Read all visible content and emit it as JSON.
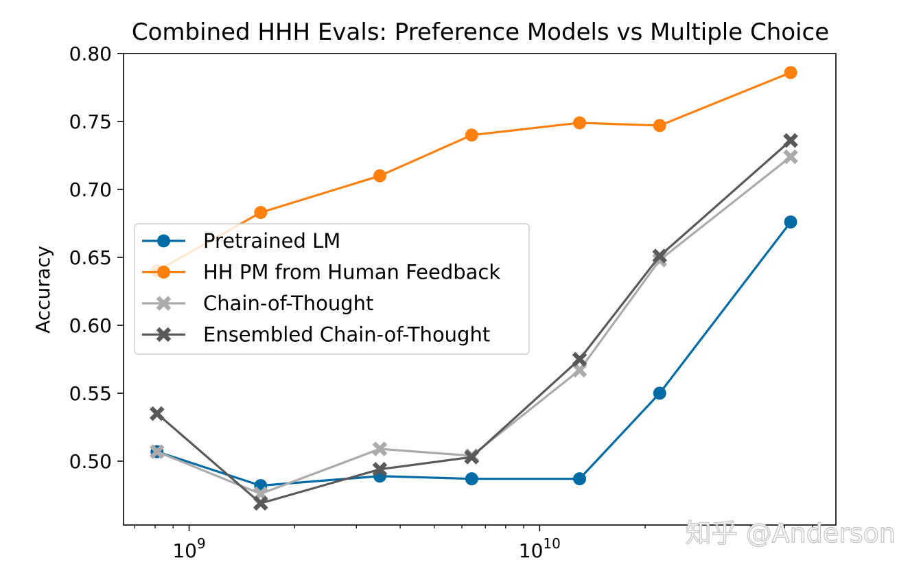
{
  "chart_data": {
    "type": "line",
    "title": "Combined HHH Evals: Preference Models vs Multiple Choice",
    "xlabel": "",
    "ylabel": "Accuracy",
    "xscale": "log",
    "xlim": [
      650000000,
      70000000000
    ],
    "ylim": [
      0.453,
      0.8
    ],
    "x": [
      810000000,
      1600000000,
      3500000000,
      6400000000,
      13000000000,
      22000000000,
      52000000000
    ],
    "x_ticks": [
      {
        "value": 1000000000,
        "base": "10",
        "exp": "9"
      },
      {
        "value": 10000000000,
        "base": "10",
        "exp": "10"
      }
    ],
    "y_ticks": [
      "0.50",
      "0.55",
      "0.60",
      "0.65",
      "0.70",
      "0.75",
      "0.80"
    ],
    "y_tick_values": [
      0.5,
      0.55,
      0.6,
      0.65,
      0.7,
      0.75,
      0.8
    ],
    "series": [
      {
        "name": "Pretrained LM",
        "color": "#006ba4",
        "marker": "circle",
        "values": [
          0.507,
          0.482,
          0.489,
          0.487,
          0.487,
          0.55,
          0.676
        ]
      },
      {
        "name": "HH PM from Human Feedback",
        "color": "#ff800e",
        "marker": "circle",
        "values": [
          0.64,
          0.683,
          0.71,
          0.74,
          0.749,
          0.747,
          0.786
        ]
      },
      {
        "name": "Chain-of-Thought",
        "color": "#ababab",
        "marker": "x",
        "values": [
          0.507,
          0.476,
          0.509,
          0.504,
          0.567,
          0.648,
          0.724
        ]
      },
      {
        "name": "Ensembled Chain-of-Thought",
        "color": "#595959",
        "marker": "x",
        "values": [
          0.535,
          0.469,
          0.494,
          0.503,
          0.575,
          0.651,
          0.736
        ]
      }
    ],
    "legend_position": "center-left"
  },
  "watermark": "知乎 @Anderson"
}
